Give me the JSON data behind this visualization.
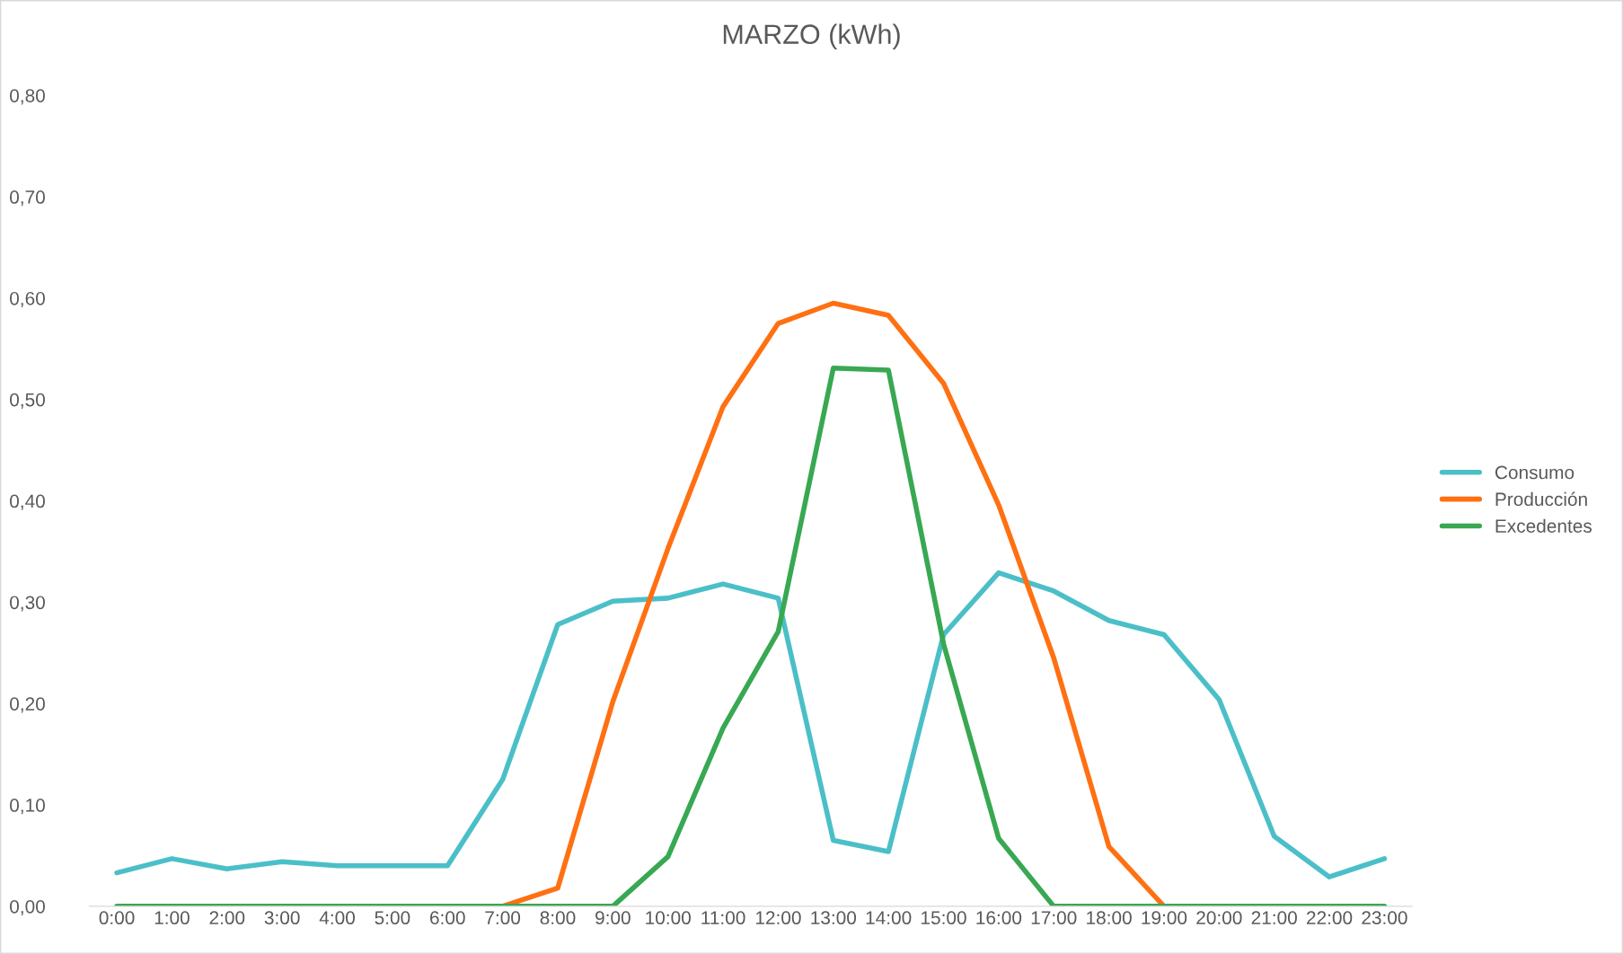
{
  "chart_data": {
    "type": "line",
    "title": "MARZO (kWh)",
    "categories": [
      "0:00",
      "1:00",
      "2:00",
      "3:00",
      "4:00",
      "5:00",
      "6:00",
      "7:00",
      "8:00",
      "9:00",
      "10:00",
      "11:00",
      "12:00",
      "13:00",
      "14:00",
      "15:00",
      "16:00",
      "17:00",
      "18:00",
      "19:00",
      "20:00",
      "21:00",
      "22:00",
      "23:00"
    ],
    "series": [
      {
        "name": "Consumo",
        "color": "#4bbfc8",
        "values": [
          0.033,
          0.047,
          0.037,
          0.044,
          0.04,
          0.04,
          0.04,
          0.125,
          0.278,
          0.301,
          0.304,
          0.318,
          0.304,
          0.065,
          0.054,
          0.268,
          0.329,
          0.311,
          0.282,
          0.268,
          0.204,
          0.069,
          0.029,
          0.047
        ]
      },
      {
        "name": "Producción",
        "color": "#ff7012",
        "values": [
          null,
          null,
          null,
          null,
          null,
          null,
          0,
          0,
          0.018,
          0.202,
          0.353,
          0.493,
          0.575,
          0.595,
          0.583,
          0.516,
          0.396,
          0.245,
          0.059,
          0,
          0,
          null,
          null,
          null
        ]
      },
      {
        "name": "Excedentes",
        "color": "#38a852",
        "values": [
          0,
          0,
          0,
          0,
          0,
          0,
          0,
          0,
          0,
          0,
          0.049,
          0.176,
          0.271,
          0.531,
          0.529,
          0.259,
          0.067,
          0,
          0,
          0,
          0,
          0,
          0,
          0
        ]
      }
    ],
    "ylim": [
      0,
      0.8
    ],
    "yticks": [
      {
        "value": 0,
        "label": "0,00"
      },
      {
        "value": 0.1,
        "label": "0,10"
      },
      {
        "value": 0.2,
        "label": "0,20"
      },
      {
        "value": 0.3,
        "label": "0,30"
      },
      {
        "value": 0.4,
        "label": "0,40"
      },
      {
        "value": 0.5,
        "label": "0,50"
      },
      {
        "value": 0.6,
        "label": "0,60"
      },
      {
        "value": 0.7,
        "label": "0,70"
      },
      {
        "value": 0.8,
        "label": "0,80"
      }
    ],
    "grid": false,
    "legend": "right",
    "marker": "none",
    "line_style": "solid"
  }
}
